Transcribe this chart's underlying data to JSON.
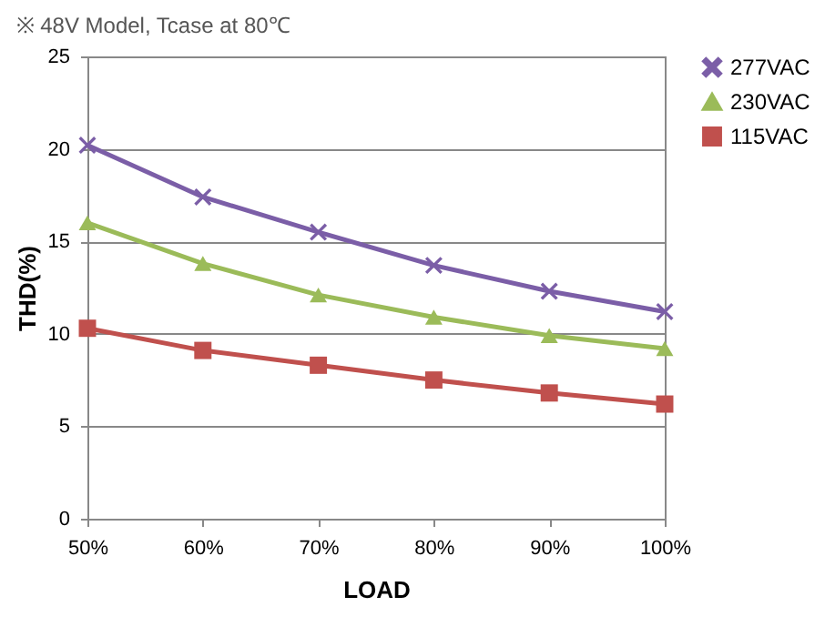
{
  "chart_data": {
    "type": "line",
    "title": "※ 48V Model, Tcase at 80℃",
    "xlabel": "LOAD",
    "ylabel": "THD(%)",
    "categories": [
      "50%",
      "60%",
      "70%",
      "80%",
      "90%",
      "100%"
    ],
    "series": [
      {
        "name": "277VAC",
        "color": "#7b5ea7",
        "marker": "cross",
        "values": [
          20.2,
          17.4,
          15.5,
          13.7,
          12.3,
          11.2
        ]
      },
      {
        "name": "230VAC",
        "color": "#9bbb59",
        "marker": "triangle",
        "values": [
          16.0,
          13.8,
          12.1,
          10.9,
          9.9,
          9.2
        ]
      },
      {
        "name": "115VAC",
        "color": "#c0504d",
        "marker": "square",
        "values": [
          10.3,
          9.1,
          8.3,
          7.5,
          6.8,
          6.2
        ]
      }
    ],
    "ylim": [
      0,
      25
    ],
    "yticks": [
      0,
      5,
      10,
      15,
      20,
      25
    ],
    "grid": "y",
    "legend": "right",
    "line_style": "solid"
  }
}
